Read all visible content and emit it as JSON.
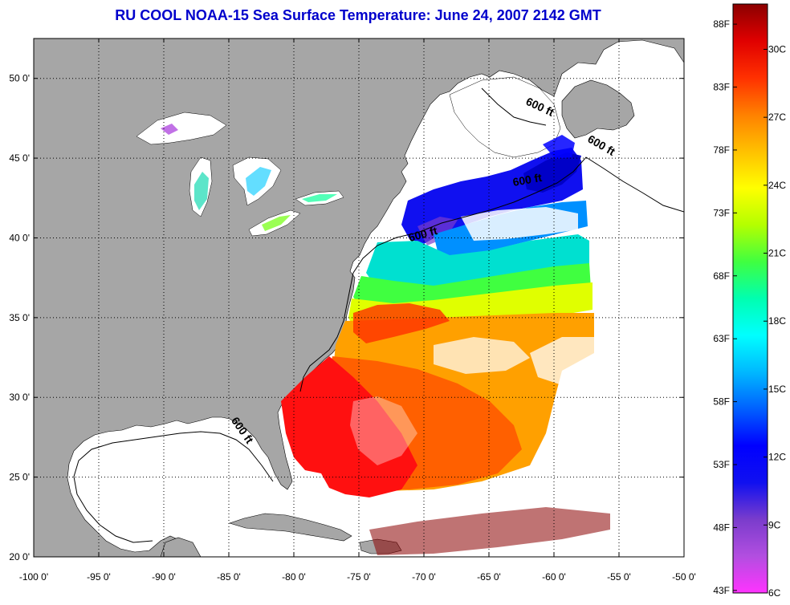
{
  "title": "RU COOL  NOAA-15  Sea Surface Temperature:  June 24, 2007 2142 GMT",
  "map": {
    "lon_range": [
      -100,
      -50
    ],
    "lat_range": [
      20,
      52.5
    ],
    "lon_ticks": [
      {
        "value": -100,
        "label": "-100 0'"
      },
      {
        "value": -95,
        "label": "-95 0'"
      },
      {
        "value": -90,
        "label": "-90 0'"
      },
      {
        "value": -85,
        "label": "-85 0'"
      },
      {
        "value": -80,
        "label": "-80 0'"
      },
      {
        "value": -75,
        "label": "-75 0'"
      },
      {
        "value": -70,
        "label": "-70 0'"
      },
      {
        "value": -65,
        "label": "-65 0'"
      },
      {
        "value": -60,
        "label": "-60 0'"
      },
      {
        "value": -55,
        "label": "-55 0'"
      },
      {
        "value": -50,
        "label": "-50 0'"
      }
    ],
    "lat_ticks": [
      {
        "value": 20,
        "label": "20 0'"
      },
      {
        "value": 25,
        "label": "25 0'"
      },
      {
        "value": 30,
        "label": "30 0'"
      },
      {
        "value": 35,
        "label": "35 0'"
      },
      {
        "value": 40,
        "label": "40 0'"
      },
      {
        "value": 45,
        "label": "45 0'"
      },
      {
        "value": 50,
        "label": "50 0'"
      }
    ],
    "grid": "dotted",
    "land_color": "#a6a6a6",
    "no_data_color": "#ffffff",
    "contour_labels": [
      {
        "text": "600 ft",
        "lon": -61.2,
        "lat": 48.0
      },
      {
        "text": "600 ft",
        "lon": -56.5,
        "lat": 45.6
      },
      {
        "text": "600 ft",
        "lon": -62.0,
        "lat": 43.4
      },
      {
        "text": "600 ft",
        "lon": -70.0,
        "lat": 40.0
      },
      {
        "text": "600 ft",
        "lon": -84.2,
        "lat": 27.8
      }
    ]
  },
  "colorbar": {
    "min_c": 6,
    "max_c": 32,
    "celsius": [
      {
        "value": 6,
        "label": "6C"
      },
      {
        "value": 9,
        "label": "9C"
      },
      {
        "value": 12,
        "label": "12C"
      },
      {
        "value": 15,
        "label": "15C"
      },
      {
        "value": 18,
        "label": "18C"
      },
      {
        "value": 21,
        "label": "21C"
      },
      {
        "value": 24,
        "label": "24C"
      },
      {
        "value": 27,
        "label": "27C"
      },
      {
        "value": 30,
        "label": "30C"
      }
    ],
    "fahrenheit": [
      {
        "value": 43,
        "label": "43F"
      },
      {
        "value": 48,
        "label": "48F"
      },
      {
        "value": 53,
        "label": "53F"
      },
      {
        "value": 58,
        "label": "58F"
      },
      {
        "value": 63,
        "label": "63F"
      },
      {
        "value": 68,
        "label": "68F"
      },
      {
        "value": 73,
        "label": "73F"
      },
      {
        "value": 78,
        "label": "78F"
      },
      {
        "value": 83,
        "label": "83F"
      },
      {
        "value": 88,
        "label": "88F"
      }
    ],
    "colors": [
      "#ff33ff",
      "#b24ee0",
      "#7a3ccc",
      "#1010f0",
      "#0000ff",
      "#0060ff",
      "#00b8ff",
      "#00ffff",
      "#00ffb0",
      "#40ff40",
      "#b4ff00",
      "#ffff00",
      "#ffc000",
      "#ff8000",
      "#ff3000",
      "#e00000",
      "#8b0000"
    ]
  }
}
